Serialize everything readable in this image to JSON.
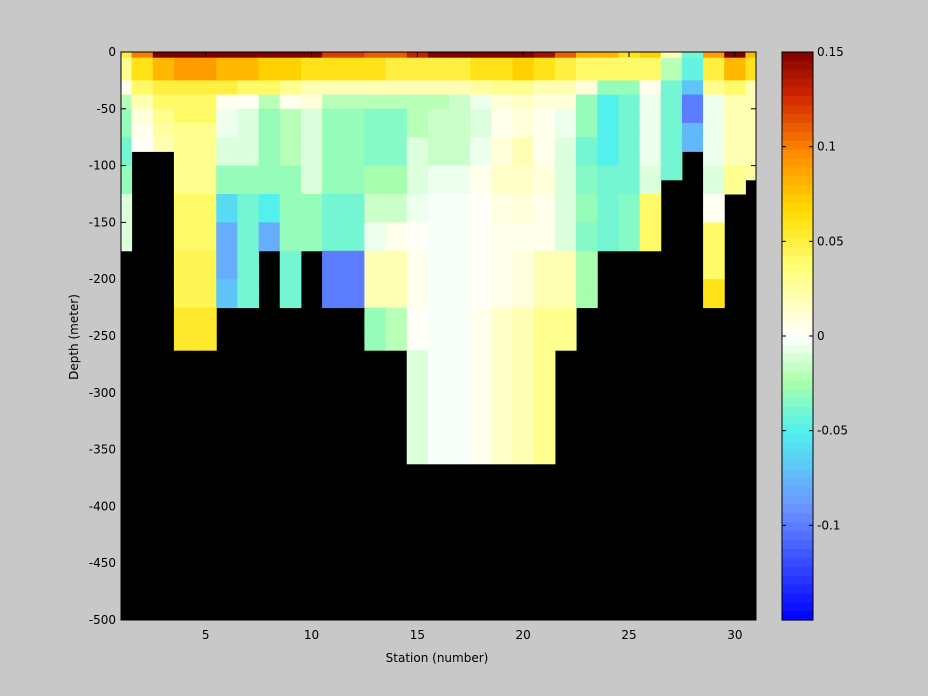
{
  "chart_data": {
    "type": "heatmap",
    "title": "",
    "xlabel": "Station (number)",
    "ylabel": "Depth (meter)",
    "xlim": [
      1,
      31
    ],
    "ylim": [
      -500,
      0
    ],
    "xticks": [
      5,
      10,
      15,
      20,
      25,
      30
    ],
    "yticks": [
      0,
      -50,
      -100,
      -150,
      -200,
      -250,
      -300,
      -350,
      -400,
      -450,
      -500
    ],
    "colorbar": {
      "colormap": "jet-white-centered",
      "clim": [
        -0.15,
        0.15
      ],
      "ticks": [
        0.15,
        0.1,
        0.05,
        0,
        -0.05,
        -0.1
      ]
    },
    "no_data_color": "#000000",
    "grid": false,
    "columns": [
      {
        "station": 1,
        "max_depth": 200,
        "values": [
          0.05,
          0.03,
          0.005,
          -0.02,
          -0.03,
          -0.03,
          -0.04,
          -0.04,
          -0.03,
          -0.03,
          -0.01,
          -0.01,
          -0.01,
          -0.01
        ]
      },
      {
        "station": 2,
        "max_depth": 100,
        "values": [
          0.1,
          0.06,
          0.04,
          0.02,
          0.01,
          0.005,
          0.002
        ]
      },
      {
        "station": 3,
        "max_depth": 100,
        "values": [
          0.15,
          0.08,
          0.05,
          0.04,
          0.03,
          0.025,
          0.02
        ]
      },
      {
        "station": 4,
        "max_depth": 300,
        "values": [
          0.15,
          0.09,
          0.05,
          0.04,
          0.04,
          0.03,
          0.03,
          0.03,
          0.03,
          0.03,
          0.04,
          0.04,
          0.04,
          0.04,
          0.045,
          0.045,
          0.045,
          0.045,
          0.055,
          0.055,
          0.055
        ]
      },
      {
        "station": 5,
        "max_depth": 300,
        "values": [
          0.15,
          0.09,
          0.05,
          0.04,
          0.04,
          0.03,
          0.03,
          0.03,
          0.03,
          0.03,
          0.04,
          0.04,
          0.04,
          0.04,
          0.045,
          0.045,
          0.045,
          0.045,
          0.055,
          0.055,
          0.055
        ]
      },
      {
        "station": 6,
        "max_depth": 250,
        "values": [
          0.15,
          0.08,
          0.05,
          0.005,
          -0.005,
          -0.005,
          -0.01,
          -0.01,
          -0.03,
          -0.03,
          -0.06,
          -0.06,
          -0.08,
          -0.08,
          -0.08,
          -0.08,
          -0.07,
          -0.07
        ]
      },
      {
        "station": 7,
        "max_depth": 250,
        "values": [
          0.15,
          0.08,
          0.04,
          0.002,
          -0.01,
          -0.01,
          -0.01,
          -0.01,
          -0.03,
          -0.03,
          -0.04,
          -0.04,
          -0.04,
          -0.04,
          -0.04,
          -0.04,
          -0.04,
          -0.04
        ]
      },
      {
        "station": 8,
        "max_depth": 200,
        "values": [
          0.15,
          0.07,
          0.04,
          -0.02,
          -0.03,
          -0.03,
          -0.03,
          -0.03,
          -0.03,
          -0.03,
          -0.05,
          -0.05,
          -0.08,
          -0.08
        ]
      },
      {
        "station": 9,
        "max_depth": 250,
        "values": [
          0.15,
          0.07,
          0.03,
          0.005,
          -0.02,
          -0.02,
          -0.02,
          -0.02,
          -0.03,
          -0.03,
          -0.03,
          -0.03,
          -0.03,
          -0.03,
          -0.04,
          -0.04,
          -0.04,
          -0.04
        ]
      },
      {
        "station": 10,
        "max_depth": 200,
        "values": [
          0.15,
          0.06,
          0.02,
          0.01,
          -0.01,
          -0.01,
          -0.01,
          -0.01,
          -0.01,
          -0.01,
          -0.03,
          -0.03,
          -0.03,
          -0.03
        ]
      },
      {
        "station": 11,
        "max_depth": 250,
        "values": [
          0.12,
          0.06,
          0.02,
          -0.02,
          -0.03,
          -0.03,
          -0.03,
          -0.03,
          -0.03,
          -0.03,
          -0.04,
          -0.04,
          -0.04,
          -0.04,
          -0.1,
          -0.1,
          -0.1,
          -0.1
        ]
      },
      {
        "station": 12,
        "max_depth": 250,
        "values": [
          0.12,
          0.06,
          0.02,
          -0.02,
          -0.03,
          -0.03,
          -0.03,
          -0.03,
          -0.03,
          -0.03,
          -0.04,
          -0.04,
          -0.04,
          -0.04,
          -0.1,
          -0.1,
          -0.1,
          -0.1
        ]
      },
      {
        "station": 13,
        "max_depth": 300,
        "values": [
          0.11,
          0.06,
          0.02,
          -0.02,
          -0.035,
          -0.035,
          -0.035,
          -0.035,
          -0.025,
          -0.025,
          -0.015,
          -0.015,
          -0.005,
          -0.005,
          0.02,
          0.02,
          0.02,
          0.02,
          -0.03,
          -0.03,
          -0.03
        ]
      },
      {
        "station": 14,
        "max_depth": 300,
        "values": [
          0.11,
          0.05,
          0.02,
          -0.02,
          -0.035,
          -0.035,
          -0.035,
          -0.035,
          -0.025,
          -0.025,
          -0.015,
          -0.015,
          0.005,
          0.005,
          0.02,
          0.02,
          0.02,
          0.02,
          -0.02,
          -0.02,
          -0.02
        ]
      },
      {
        "station": 15,
        "max_depth": 400,
        "values": [
          0.13,
          0.05,
          0.02,
          -0.02,
          -0.02,
          -0.02,
          -0.01,
          -0.01,
          -0.01,
          -0.01,
          -0.005,
          -0.005,
          0.002,
          0.002,
          0.005,
          0.005,
          0.005,
          0.005,
          0.002,
          0.002,
          0.002,
          -0.01,
          -0.01,
          -0.01,
          -0.01,
          -0.01,
          -0.01,
          -0.01,
          -0.01
        ]
      },
      {
        "station": 16,
        "max_depth": 400,
        "values": [
          0.15,
          0.05,
          0.02,
          -0.02,
          -0.015,
          -0.015,
          -0.015,
          -0.015,
          -0.005,
          -0.005,
          -0.002,
          -0.002,
          -0.002,
          -0.002,
          -0.002,
          -0.002,
          -0.002,
          -0.002,
          -0.002,
          -0.002,
          -0.002,
          -0.002,
          -0.002,
          -0.002,
          -0.002,
          -0.002,
          -0.002,
          -0.002,
          -0.002
        ]
      },
      {
        "station": 17,
        "max_depth": 400,
        "values": [
          0.15,
          0.05,
          0.02,
          -0.015,
          -0.015,
          -0.015,
          -0.015,
          -0.015,
          -0.005,
          -0.005,
          -0.002,
          -0.002,
          -0.002,
          -0.002,
          -0.002,
          -0.002,
          -0.002,
          -0.002,
          -0.002,
          -0.002,
          -0.002,
          -0.002,
          -0.002,
          -0.002,
          -0.002,
          -0.002,
          -0.002,
          -0.002,
          -0.002
        ]
      },
      {
        "station": 18,
        "max_depth": 400,
        "values": [
          0.15,
          0.06,
          0.025,
          -0.005,
          -0.01,
          -0.01,
          -0.005,
          -0.005,
          0.005,
          0.005,
          0.002,
          0.002,
          0.002,
          0.002,
          0.002,
          0.002,
          0.002,
          0.002,
          0.005,
          0.005,
          0.005,
          0.005,
          0.005,
          0.005,
          0.005,
          0.005,
          0.005,
          0.005,
          0.005
        ]
      },
      {
        "station": 19,
        "max_depth": 400,
        "values": [
          0.15,
          0.06,
          0.03,
          0.01,
          0.005,
          0.005,
          0.01,
          0.01,
          0.015,
          0.015,
          0.008,
          0.008,
          0.005,
          0.005,
          0.005,
          0.005,
          0.005,
          0.005,
          0.015,
          0.015,
          0.015,
          0.015,
          0.015,
          0.015,
          0.015,
          0.015,
          0.015,
          0.015,
          0.015
        ]
      },
      {
        "station": 20,
        "max_depth": 400,
        "values": [
          0.15,
          0.07,
          0.03,
          0.015,
          0.01,
          0.01,
          0.02,
          0.02,
          0.015,
          0.015,
          0.01,
          0.01,
          0.005,
          0.005,
          0.01,
          0.01,
          0.01,
          0.01,
          0.02,
          0.02,
          0.02,
          0.02,
          0.02,
          0.02,
          0.02,
          0.02,
          0.02,
          0.02,
          0.02
        ]
      },
      {
        "station": 21,
        "max_depth": 400,
        "values": [
          0.14,
          0.06,
          0.02,
          0.01,
          0.005,
          0.005,
          0.005,
          0.005,
          0.01,
          0.01,
          0.005,
          0.005,
          0.005,
          0.005,
          0.02,
          0.02,
          0.02,
          0.02,
          0.03,
          0.03,
          0.03,
          0.03,
          0.03,
          0.03,
          0.03,
          0.03,
          0.03,
          0.03,
          0.03
        ]
      },
      {
        "station": 22,
        "max_depth": 300,
        "values": [
          0.11,
          0.05,
          0.02,
          0.01,
          -0.005,
          -0.005,
          -0.01,
          -0.01,
          -0.01,
          -0.01,
          -0.01,
          -0.01,
          -0.01,
          -0.01,
          0.02,
          0.02,
          0.02,
          0.02,
          0.03,
          0.03,
          0.03
        ]
      },
      {
        "station": 23,
        "max_depth": 250,
        "values": [
          0.08,
          0.04,
          0.01,
          -0.03,
          -0.03,
          -0.03,
          -0.04,
          -0.04,
          -0.035,
          -0.035,
          -0.03,
          -0.03,
          -0.035,
          -0.035,
          -0.025,
          -0.025,
          -0.025,
          -0.025
        ]
      },
      {
        "station": 24,
        "max_depth": 200,
        "values": [
          0.08,
          0.04,
          -0.03,
          -0.05,
          -0.05,
          -0.05,
          -0.05,
          -0.05,
          -0.04,
          -0.04,
          -0.04,
          -0.04,
          -0.04,
          -0.04
        ]
      },
      {
        "station": 25,
        "max_depth": 200,
        "values": [
          0.06,
          0.04,
          -0.03,
          -0.04,
          -0.04,
          -0.04,
          -0.04,
          -0.04,
          -0.04,
          -0.04,
          -0.035,
          -0.035,
          -0.035,
          -0.035
        ]
      },
      {
        "station": 26,
        "max_depth": 200,
        "values": [
          0.07,
          0.04,
          0.005,
          -0.005,
          -0.005,
          -0.005,
          -0.005,
          -0.005,
          -0.01,
          -0.01,
          0.04,
          0.04,
          0.04,
          0.04
        ]
      },
      {
        "station": 27,
        "max_depth": 125,
        "values": [
          0.02,
          -0.02,
          -0.04,
          -0.04,
          -0.04,
          -0.04,
          -0.04,
          -0.04,
          -0.04
        ]
      },
      {
        "station": 28,
        "max_depth": 100,
        "values": [
          -0.04,
          -0.045,
          -0.07,
          -0.1,
          -0.1,
          -0.075,
          -0.075
        ]
      },
      {
        "station": 29,
        "max_depth": 250,
        "values": [
          0.09,
          0.05,
          0.03,
          -0.005,
          -0.005,
          -0.005,
          -0.005,
          -0.005,
          -0.01,
          -0.01,
          0.003,
          0.003,
          0.04,
          0.04,
          0.04,
          0.04,
          0.06,
          0.06
        ]
      },
      {
        "station": 30,
        "max_depth": 150,
        "values": [
          0.15,
          0.08,
          0.04,
          0.02,
          0.02,
          0.02,
          0.02,
          0.02,
          0.03,
          0.03
        ]
      },
      {
        "station": 31,
        "max_depth": 125,
        "values": [
          0.08,
          0.06,
          0.02,
          0.02,
          0.02,
          0.02,
          0.02,
          0.02,
          0.025
        ]
      }
    ]
  }
}
